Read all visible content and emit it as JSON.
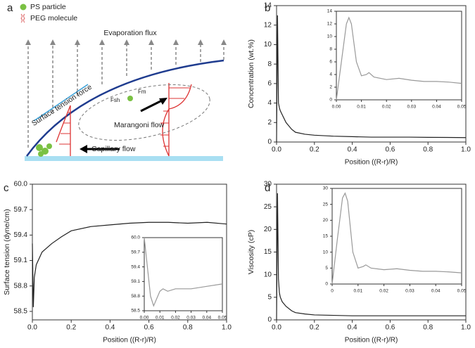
{
  "panel_labels": [
    "a",
    "b",
    "c",
    "d"
  ],
  "diagram": {
    "legend_particle": "PS particle",
    "legend_molecule": "PEG molecule",
    "evaporation": "Evaporation flux",
    "surface_tension": "Surface tension force",
    "marangoni": "Marangoni flow",
    "capillary": "Capillary flow",
    "force_1": "Fsh",
    "force_2": "Fm"
  },
  "chart_data": [
    {
      "type": "line",
      "xlabel": "Position ((R-r)/R)",
      "ylabel": "Concentration (wt.%)",
      "color": "#222222",
      "x": [
        0,
        0.005,
        0.01,
        0.015,
        0.02,
        0.03,
        0.05,
        0.08,
        0.1,
        0.15,
        0.2,
        0.3,
        0.4,
        0.5,
        0.6,
        0.7,
        0.8,
        0.9,
        1.0
      ],
      "values": [
        0,
        13,
        4,
        3.5,
        3.2,
        2.8,
        2,
        1.3,
        1,
        0.8,
        0.7,
        0.6,
        0.55,
        0.5,
        0.5,
        0.5,
        0.48,
        0.47,
        0.45
      ],
      "xlim": [
        0,
        1
      ],
      "ylim": [
        0,
        14
      ],
      "xticks": [
        {
          "value": 0,
          "label": "0.0"
        },
        0.2,
        0.4,
        0.6,
        0.8,
        {
          "value": 1,
          "label": "1.0"
        }
      ],
      "yticks": [
        0,
        2,
        4,
        6,
        8,
        10,
        12,
        14
      ]
    },
    {
      "type": "line",
      "color": "#999999",
      "x": [
        0,
        0.002,
        0.004,
        0.005,
        0.006,
        0.008,
        0.01,
        0.012,
        0.013,
        0.015,
        0.02,
        0.025,
        0.03,
        0.035,
        0.04,
        0.045,
        0.05
      ],
      "values": [
        0,
        6,
        12,
        13,
        12,
        6,
        3.8,
        4,
        4.3,
        3.6,
        3.2,
        3.4,
        3.1,
        2.9,
        2.9,
        2.8,
        2.6
      ],
      "xlim": [
        0,
        0.05
      ],
      "ylim": [
        0,
        14
      ],
      "xticks": [
        {
          "value": 0,
          "label": "0.00"
        },
        0.01,
        0.02,
        0.03,
        0.04,
        0.05
      ],
      "yticks": [
        0,
        2,
        4,
        6,
        8,
        10,
        12,
        14
      ]
    },
    {
      "type": "line",
      "xlabel": "Position ((R-r)/R)",
      "ylabel": "Surface tension (dyne/cm)",
      "color": "#222222",
      "x": [
        0,
        0.005,
        0.01,
        0.02,
        0.05,
        0.1,
        0.15,
        0.2,
        0.3,
        0.4,
        0.5,
        0.6,
        0.7,
        0.8,
        0.9,
        1.0
      ],
      "values": [
        59.3,
        58.55,
        58.9,
        59.05,
        59.2,
        59.3,
        59.38,
        59.45,
        59.5,
        59.52,
        59.54,
        59.55,
        59.55,
        59.54,
        59.55,
        59.53
      ],
      "xlim": [
        0,
        1
      ],
      "ylim": [
        58.4,
        60
      ],
      "xticks": [
        {
          "value": 0,
          "label": "0.0"
        },
        0.2,
        0.4,
        0.6,
        0.8,
        {
          "value": 1,
          "label": "1.0"
        }
      ],
      "yticks": [
        58.5,
        58.8,
        59.1,
        59.4,
        59.7,
        {
          "value": 60,
          "label": "60.0"
        }
      ]
    },
    {
      "type": "line",
      "color": "#999999",
      "x": [
        0,
        0.002,
        0.004,
        0.006,
        0.008,
        0.01,
        0.012,
        0.015,
        0.02,
        0.03,
        0.04,
        0.05
      ],
      "values": [
        60.0,
        59.4,
        58.8,
        58.6,
        58.75,
        58.9,
        58.95,
        58.9,
        58.95,
        58.95,
        59.0,
        59.05
      ],
      "xlim": [
        0,
        0.05
      ],
      "ylim": [
        58.5,
        60
      ],
      "xticks": [
        {
          "value": 0,
          "label": "0.00"
        },
        0.01,
        0.02,
        0.03,
        0.04,
        0.05
      ],
      "yticks": [
        58.5,
        58.8,
        59.1,
        59.4,
        59.7,
        {
          "value": 60,
          "label": "60.0"
        }
      ]
    },
    {
      "type": "line",
      "xlabel": "Position ((R-r)/R)",
      "ylabel": "Viscosity (cP)",
      "color": "#222222",
      "x": [
        0,
        0.005,
        0.01,
        0.015,
        0.02,
        0.03,
        0.05,
        0.08,
        0.1,
        0.15,
        0.2,
        0.3,
        0.4,
        0.5,
        0.6,
        0.7,
        0.8,
        0.9,
        1.0
      ],
      "values": [
        0,
        28,
        9,
        6,
        5,
        4,
        3,
        2,
        1.6,
        1.3,
        1.1,
        1,
        0.9,
        0.9,
        0.9,
        0.9,
        0.9,
        0.9,
        0.9
      ],
      "xlim": [
        0,
        1
      ],
      "ylim": [
        0,
        30
      ],
      "xticks": [
        {
          "value": 0,
          "label": "0.0"
        },
        0.2,
        0.4,
        0.6,
        0.8,
        {
          "value": 1,
          "label": "1.0"
        }
      ],
      "yticks": [
        0,
        5,
        10,
        15,
        20,
        25,
        30
      ]
    },
    {
      "type": "line",
      "color": "#999999",
      "x": [
        0,
        0.002,
        0.004,
        0.005,
        0.006,
        0.008,
        0.01,
        0.012,
        0.013,
        0.015,
        0.02,
        0.025,
        0.03,
        0.035,
        0.04,
        0.045,
        0.05
      ],
      "values": [
        0,
        14,
        27,
        28.5,
        26,
        10,
        5,
        5.5,
        6,
        5,
        4.5,
        4.8,
        4.3,
        4,
        4,
        3.8,
        3.5
      ],
      "xlim": [
        0,
        0.05
      ],
      "ylim": [
        0,
        30
      ],
      "xticks": [
        {
          "value": 0,
          "label": "0"
        },
        0.01,
        0.02,
        0.03,
        0.04,
        0.05
      ],
      "yticks": [
        0,
        5,
        10,
        15,
        20,
        25,
        30
      ]
    }
  ]
}
